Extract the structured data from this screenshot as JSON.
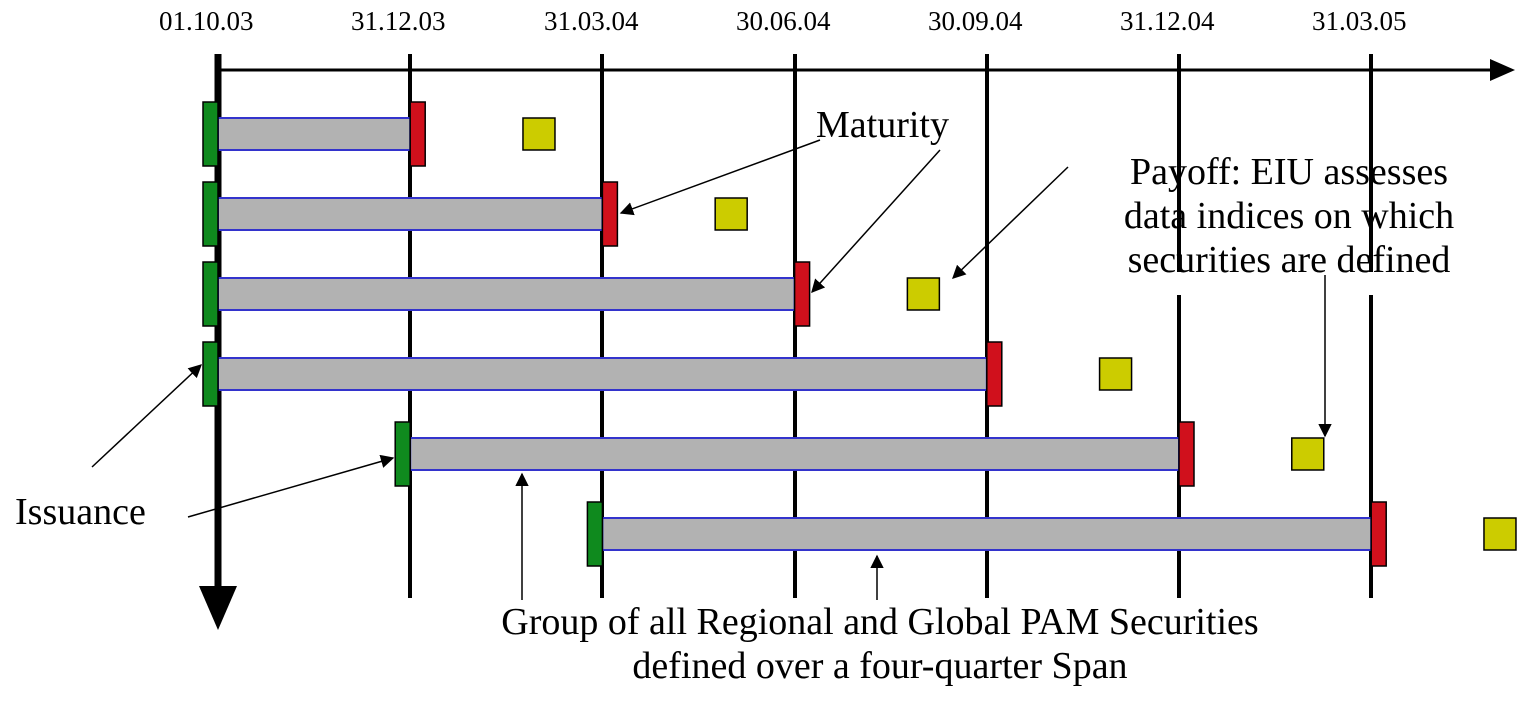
{
  "dates": [
    "01.10.03",
    "31.12.03",
    "31.03.04",
    "30.06.04",
    "30.09.04",
    "31.12.04",
    "31.03.05"
  ],
  "labels": {
    "maturity": "Maturity",
    "payoff_lines": [
      "Payoff:  EIU assesses",
      "data indices on which",
      "securities are defined"
    ],
    "issuance": "Issuance",
    "group_lines": [
      "Group of all Regional and Global PAM Securities",
      "defined over a four-quarter Span"
    ]
  },
  "securities": [
    {
      "issue": "01.10.03",
      "maturity": "31.12.03",
      "payoff_quarter_offset": 0.67
    },
    {
      "issue": "01.10.03",
      "maturity": "31.03.04",
      "payoff_quarter_offset": 0.67
    },
    {
      "issue": "01.10.03",
      "maturity": "30.06.04",
      "payoff_quarter_offset": 0.67
    },
    {
      "issue": "01.10.03",
      "maturity": "30.09.04",
      "payoff_quarter_offset": 0.67
    },
    {
      "issue": "31.12.03",
      "maturity": "31.12.04",
      "payoff_quarter_offset": 0.67
    },
    {
      "issue": "31.03.04",
      "maturity": "31.03.05",
      "payoff_quarter_offset": 0.67
    }
  ],
  "colors": {
    "issuance": "#0f8a1e",
    "maturity": "#d0101c",
    "payoff": "#cccc00",
    "bar_fill": "#b2b2b2",
    "bar_edge": "#3333cc"
  }
}
